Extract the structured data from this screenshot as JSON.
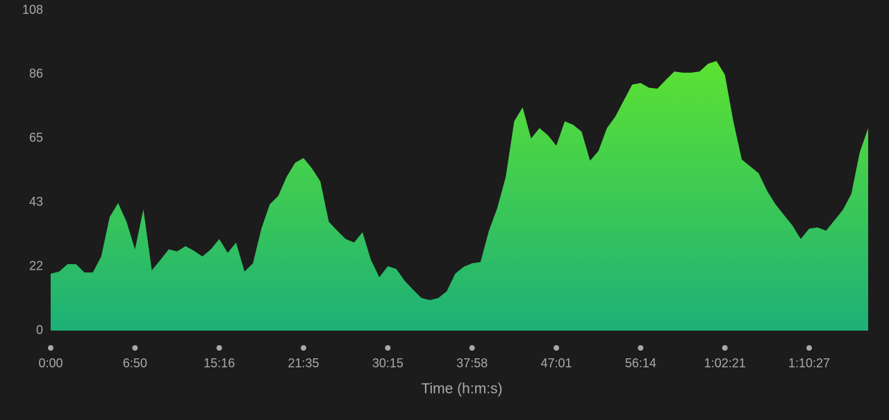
{
  "chart_data": {
    "type": "area",
    "x_label": "Time (h:m:s)",
    "values": [
      19.2,
      19.9,
      22.4,
      22.4,
      19.6,
      19.6,
      25,
      38.3,
      43,
      36.7,
      27.4,
      40.9,
      20.3,
      23.8,
      27.4,
      26.7,
      28.5,
      26.9,
      25,
      27.4,
      30.9,
      26.2,
      29.7,
      19.9,
      22.7,
      34.4,
      42.6,
      45.4,
      51.9,
      56.6,
      58.2,
      54.7,
      50.3,
      36.7,
      33.7,
      30.9,
      29.7,
      33.2,
      23.8,
      18,
      21.7,
      20.8,
      16.8,
      13.8,
      11,
      10.3,
      11,
      13.3,
      19.2,
      21.5,
      22.7,
      23.1,
      33.7,
      41.4,
      51.9,
      70.6,
      75.3,
      64.8,
      68.3,
      65.9,
      62.4,
      70.6,
      69.4,
      67.1,
      57.3,
      60.6,
      68.3,
      72.2,
      77.6,
      83,
      83.5,
      81.9,
      81.6,
      84.6,
      87.4,
      87,
      87,
      87.4,
      90,
      90.9,
      86.3,
      70.6,
      57.7,
      55.4,
      53.1,
      47.2,
      42.6,
      39,
      35.5,
      30.9,
      34.4,
      34.8,
      33.7,
      37.2,
      40.7,
      46.1,
      60.1,
      68.3
    ],
    "colors": [
      "#5ce232",
      "#1db077"
    ],
    "xlim": [
      0,
      97
    ],
    "xticks": [
      {
        "value": 0,
        "label": "0:00"
      },
      {
        "value": 10,
        "label": "6:50"
      },
      {
        "value": 20,
        "label": "15:16"
      },
      {
        "value": 30,
        "label": "21:35"
      },
      {
        "value": 40,
        "label": "30:15"
      },
      {
        "value": 50,
        "label": "37:58"
      },
      {
        "value": 60,
        "label": "47:01"
      },
      {
        "value": 70,
        "label": "56:14"
      },
      {
        "value": 80,
        "label": "1:02:21"
      },
      {
        "value": 90,
        "label": "1:10:27"
      }
    ],
    "ylim": [
      0,
      108
    ],
    "yticks": [
      0,
      {
        "value": 21.6,
        "label": "22"
      },
      {
        "value": 43.2,
        "label": "43"
      },
      {
        "value": 64.8,
        "label": "65"
      },
      {
        "value": 86.4,
        "label": "86"
      },
      108
    ]
  }
}
